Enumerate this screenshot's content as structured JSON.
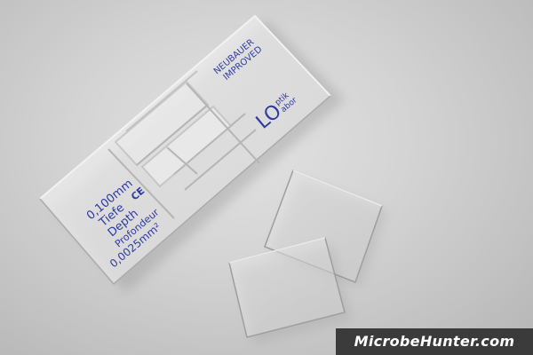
{
  "slide": {
    "label_line1": "0,100mm",
    "label_line2": "Tiefe",
    "label_ce": "CE",
    "label_line3": "Depth",
    "label_line4": "Profondeur",
    "area": "0,0025mm²",
    "brand_line1": "NEUBAUER",
    "brand_line2": "IMPROVED",
    "logo_text": "LO",
    "logo_sub1": "ptik",
    "logo_sub2": "abor"
  },
  "watermark": {
    "text": "MicrobeHunter.com"
  },
  "colors": {
    "background": "#d4d4d4",
    "print": "#2d3aa0",
    "watermark_bg": "#3b3b3b",
    "watermark_text": "#ffffff"
  }
}
